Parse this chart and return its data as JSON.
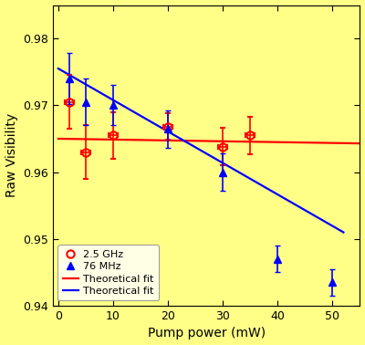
{
  "title": "",
  "xlabel": "Pump power (mW)",
  "ylabel": "Raw Visibility",
  "background_color": "#ffff88",
  "xlim": [
    -1,
    55
  ],
  "ylim": [
    0.94,
    0.985
  ],
  "yticks": [
    0.94,
    0.95,
    0.96,
    0.97,
    0.98
  ],
  "xticks": [
    0,
    10,
    20,
    30,
    40,
    50
  ],
  "ghz_x": [
    2,
    5,
    10,
    20,
    30,
    35
  ],
  "ghz_y": [
    0.9705,
    0.963,
    0.9655,
    0.9668,
    0.9638,
    0.9655
  ],
  "ghz_xerr": [
    0.8,
    0.8,
    0.8,
    0.8,
    0.8,
    0.8
  ],
  "ghz_yerr": [
    0.004,
    0.004,
    0.0035,
    0.002,
    0.0028,
    0.0028
  ],
  "mhz_x": [
    2,
    5,
    10,
    20,
    30,
    40,
    50
  ],
  "mhz_y": [
    0.974,
    0.9705,
    0.97,
    0.9665,
    0.96,
    0.947,
    0.9435
  ],
  "mhz_yerr": [
    0.0038,
    0.0035,
    0.003,
    0.0028,
    0.0028,
    0.002,
    0.002
  ],
  "red_fit_x": [
    0,
    55
  ],
  "red_fit_y": [
    0.965,
    0.9643
  ],
  "blue_fit_x": [
    0,
    52
  ],
  "blue_fit_y": [
    0.9755,
    0.951
  ],
  "red_color": "#ff0000",
  "blue_color": "#0000ff"
}
